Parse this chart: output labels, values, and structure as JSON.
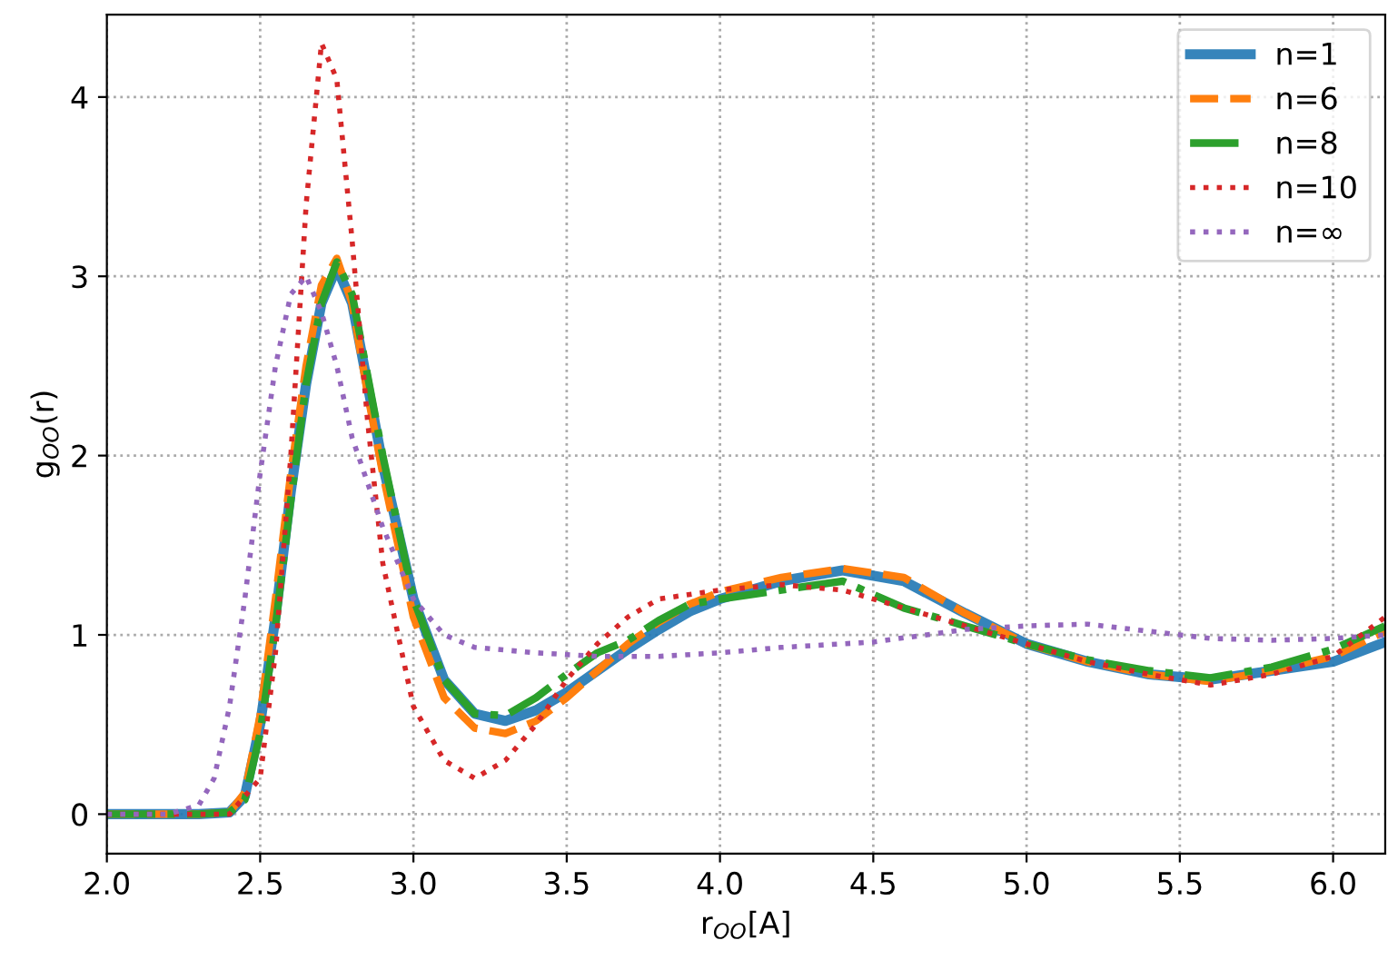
{
  "chart_data": {
    "type": "line",
    "xlabel": "r$_{OO}$[A]",
    "ylabel": "g$_{OO}$(r)",
    "xlim": [
      2.0,
      6.17
    ],
    "ylim": [
      -0.22,
      4.46
    ],
    "xticks": [
      {
        "value": 2,
        "label": "2.0"
      },
      {
        "value": 2.5,
        "label": "2.5"
      },
      {
        "value": 3,
        "label": "3.0"
      },
      {
        "value": 3.5,
        "label": "3.5"
      },
      {
        "value": 4,
        "label": "4.0"
      },
      {
        "value": 4.5,
        "label": "4.5"
      },
      {
        "value": 5,
        "label": "5.0"
      },
      {
        "value": 5.5,
        "label": "5.5"
      },
      {
        "value": 6,
        "label": "6.0"
      }
    ],
    "yticks": [
      0,
      1,
      2,
      3,
      4
    ],
    "grid": true,
    "legend": "top right",
    "series": [
      {
        "name": "n=1",
        "color": "#1f77b4",
        "line_style": "solid",
        "x": [
          2.0,
          2.3,
          2.4,
          2.45,
          2.5,
          2.55,
          2.6,
          2.65,
          2.7,
          2.75,
          2.8,
          2.85,
          2.9,
          3.0,
          3.1,
          3.2,
          3.3,
          3.4,
          3.5,
          3.6,
          3.7,
          3.8,
          3.9,
          4.0,
          4.2,
          4.4,
          4.6,
          4.8,
          5.0,
          5.2,
          5.4,
          5.6,
          5.8,
          6.0,
          6.17
        ],
        "values": [
          0,
          0,
          0.01,
          0.1,
          0.5,
          1.1,
          1.8,
          2.4,
          2.85,
          3.05,
          2.85,
          2.4,
          1.95,
          1.2,
          0.75,
          0.56,
          0.52,
          0.58,
          0.68,
          0.8,
          0.92,
          1.03,
          1.13,
          1.2,
          1.3,
          1.36,
          1.3,
          1.12,
          0.95,
          0.85,
          0.78,
          0.75,
          0.8,
          0.85,
          0.96
        ]
      },
      {
        "name": "n=6",
        "color": "#ff7f0e",
        "line_style": "dashed",
        "x": [
          2.0,
          2.3,
          2.4,
          2.45,
          2.5,
          2.55,
          2.6,
          2.65,
          2.7,
          2.75,
          2.8,
          2.85,
          2.9,
          3.0,
          3.1,
          3.2,
          3.3,
          3.4,
          3.5,
          3.6,
          3.7,
          3.8,
          3.9,
          4.0,
          4.2,
          4.4,
          4.6,
          4.8,
          5.0,
          5.2,
          5.4,
          5.6,
          5.8,
          6.0,
          6.17
        ],
        "values": [
          0,
          0,
          0.01,
          0.12,
          0.55,
          1.2,
          1.9,
          2.5,
          2.95,
          3.1,
          2.85,
          2.35,
          1.9,
          1.1,
          0.65,
          0.48,
          0.45,
          0.52,
          0.65,
          0.8,
          0.95,
          1.07,
          1.17,
          1.24,
          1.32,
          1.37,
          1.32,
          1.12,
          0.95,
          0.85,
          0.78,
          0.74,
          0.8,
          0.88,
          1.02
        ]
      },
      {
        "name": "n=8",
        "color": "#2ca02c",
        "line_style": "dashdot",
        "x": [
          2.0,
          2.3,
          2.4,
          2.45,
          2.5,
          2.55,
          2.6,
          2.65,
          2.7,
          2.75,
          2.8,
          2.85,
          2.9,
          3.0,
          3.1,
          3.2,
          3.3,
          3.4,
          3.5,
          3.6,
          3.7,
          3.8,
          3.9,
          4.0,
          4.2,
          4.4,
          4.6,
          4.8,
          5.0,
          5.2,
          5.4,
          5.6,
          5.8,
          6.0,
          6.17
        ],
        "values": [
          0,
          0,
          0.01,
          0.08,
          0.45,
          1.05,
          1.75,
          2.4,
          2.85,
          3.08,
          2.9,
          2.45,
          2.0,
          1.2,
          0.75,
          0.56,
          0.55,
          0.65,
          0.78,
          0.9,
          0.97,
          1.08,
          1.17,
          1.2,
          1.25,
          1.3,
          1.15,
          1.05,
          0.95,
          0.86,
          0.8,
          0.76,
          0.82,
          0.92,
          1.05
        ]
      },
      {
        "name": "n=10",
        "color": "#d62728",
        "line_style": "dotted",
        "x": [
          2.0,
          2.3,
          2.4,
          2.5,
          2.55,
          2.6,
          2.65,
          2.7,
          2.75,
          2.8,
          2.85,
          2.9,
          3.0,
          3.1,
          3.2,
          3.3,
          3.4,
          3.5,
          3.6,
          3.7,
          3.8,
          4.0,
          4.2,
          4.4,
          4.6,
          4.8,
          5.0,
          5.2,
          5.4,
          5.6,
          5.8,
          6.0,
          6.17
        ],
        "values": [
          0,
          0,
          0,
          0.2,
          0.9,
          2.0,
          3.4,
          4.3,
          4.1,
          3.2,
          2.2,
          1.4,
          0.6,
          0.3,
          0.2,
          0.3,
          0.5,
          0.75,
          0.95,
          1.1,
          1.2,
          1.25,
          1.28,
          1.25,
          1.15,
          1.05,
          0.95,
          0.85,
          0.78,
          0.72,
          0.78,
          0.88,
          1.1
        ]
      },
      {
        "name": "n=∞",
        "color": "#9467bd",
        "line_style": "dotted",
        "x": [
          2.0,
          2.2,
          2.3,
          2.35,
          2.4,
          2.45,
          2.5,
          2.55,
          2.6,
          2.65,
          2.7,
          2.75,
          2.8,
          2.9,
          3.0,
          3.1,
          3.2,
          3.4,
          3.6,
          3.8,
          4.0,
          4.2,
          4.5,
          4.8,
          5.0,
          5.2,
          5.4,
          5.6,
          5.8,
          6.0,
          6.17
        ],
        "values": [
          0,
          0,
          0.05,
          0.2,
          0.6,
          1.2,
          1.9,
          2.5,
          2.9,
          3.0,
          2.8,
          2.5,
          2.1,
          1.6,
          1.2,
          1.0,
          0.93,
          0.9,
          0.88,
          0.88,
          0.9,
          0.93,
          0.96,
          1.03,
          1.05,
          1.06,
          1.02,
          0.98,
          0.97,
          0.98,
          1.0
        ]
      }
    ]
  }
}
